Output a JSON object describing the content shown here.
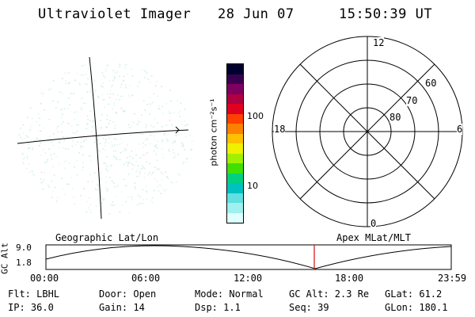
{
  "header": {
    "instrument": "Ultraviolet Imager",
    "date": "28 Jun 07",
    "time": "15:50:39 UT"
  },
  "colorbar": {
    "unit_label": "photon cm⁻²s⁻¹",
    "tick_labels": [
      "100",
      "10"
    ],
    "colors": [
      "#000030",
      "#3a0050",
      "#800060",
      "#b00040",
      "#e00020",
      "#ff4000",
      "#ff8000",
      "#ffc000",
      "#f0f000",
      "#a0f000",
      "#40e000",
      "#00d080",
      "#00c0c0",
      "#60e0e0",
      "#a0f0f0",
      "#e0ffff"
    ]
  },
  "polar": {
    "clock_labels": {
      "top": "12",
      "left": "18",
      "right": "6",
      "bottom": "0"
    },
    "lat_labels": [
      "60",
      "70",
      "80"
    ]
  },
  "timeline": {
    "left_title": "Geographic Lat/Lon",
    "right_title": "Apex MLat/MLT",
    "axis_label": "GC Alt",
    "y_ticks": [
      "9.0",
      "1.8"
    ],
    "x_ticks": [
      "00:00",
      "06:00",
      "12:00",
      "18:00",
      "23:59"
    ],
    "marker_color": "#d01010"
  },
  "status": {
    "flt": "Flt: LBHL",
    "ip": "IP: 36.0",
    "door": "Door: Open",
    "gain": "Gain: 14",
    "mode": "Mode: Normal",
    "dsp": "Dsp:    1.1",
    "gcalt": "GC Alt: 2.3 Re",
    "seq": "Seq: 39",
    "glat": "GLat:  61.2",
    "glon": "GLon: 180.1"
  }
}
